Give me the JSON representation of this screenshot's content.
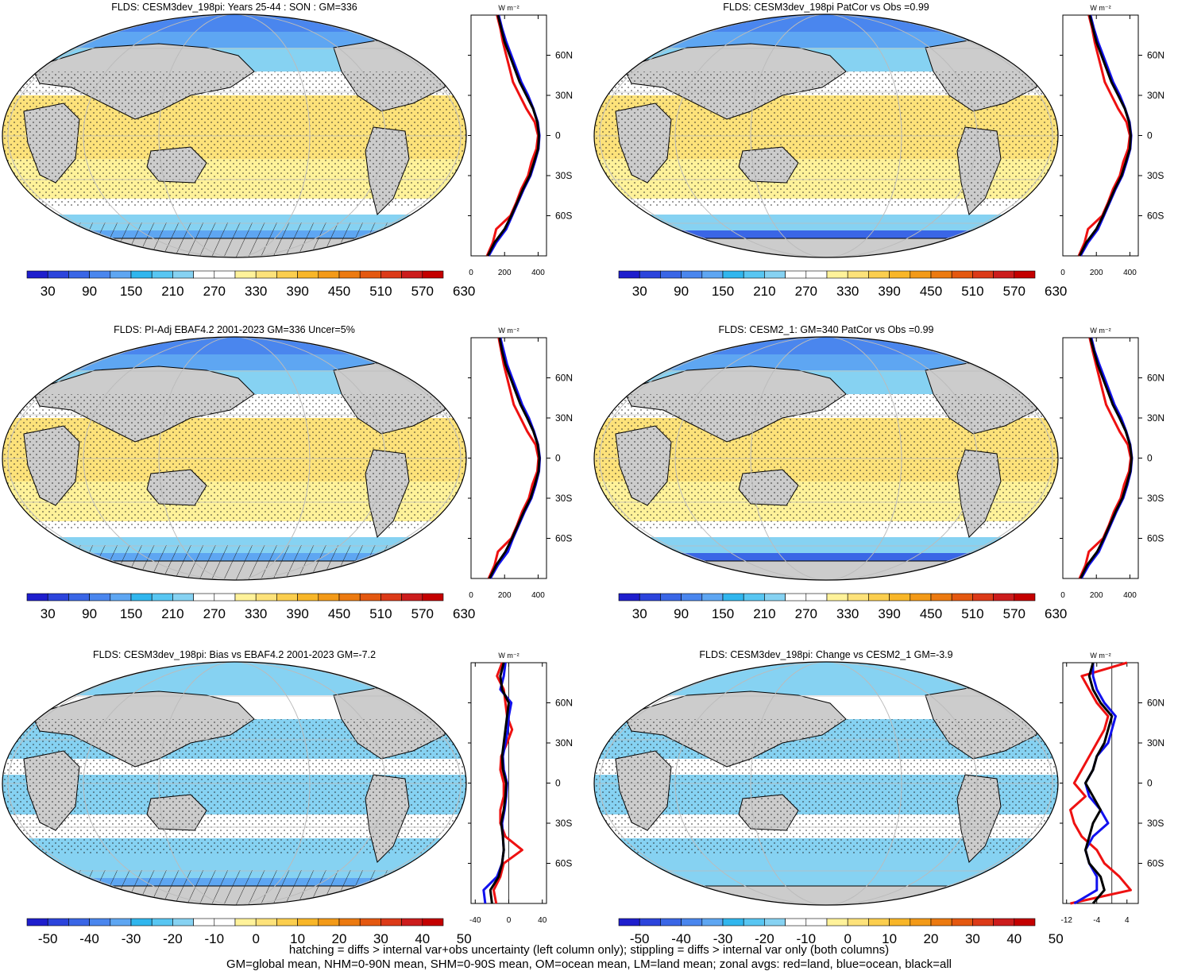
{
  "colors": {
    "land": "#cccccc",
    "abs_palette": [
      "#1e1ecd",
      "#2c44dc",
      "#3a66e6",
      "#4a86ee",
      "#5ea6f2",
      "#30b6ee",
      "#58c6f2",
      "#86d2f2",
      "#ffffff",
      "#ffffff",
      "#fff29a",
      "#fde27a",
      "#fbce4e",
      "#f8b628",
      "#f39a18",
      "#ec7a10",
      "#e45810",
      "#dc3a18",
      "#cc1c1c",
      "#c40000"
    ],
    "diff_palette": [
      "#1e1ecd",
      "#2c44dc",
      "#3a66e6",
      "#4a86ee",
      "#5ea6f2",
      "#30b6ee",
      "#58c6f2",
      "#86d2f2",
      "#ffffff",
      "#ffffff",
      "#fff29a",
      "#fde27a",
      "#fbce4e",
      "#f8b628",
      "#f39a18",
      "#ec7a10",
      "#e45810",
      "#dc3a18",
      "#cc1c1c",
      "#c40000"
    ],
    "curve_land": "#ee1111",
    "curve_ocean": "#1111ee",
    "curve_all": "#000000"
  },
  "zonal_y_ticks": [
    "60N",
    "30N",
    "0",
    "30S",
    "60S"
  ],
  "zonal_units": "W m⁻²",
  "abs_colorbar_labels": [
    "30",
    "90",
    "150",
    "210",
    "270",
    "330",
    "390",
    "450",
    "510",
    "570",
    "630"
  ],
  "diff_colorbar_labels": [
    "-50",
    "-40",
    "-30",
    "-20",
    "-10",
    "0",
    "10",
    "20",
    "30",
    "40",
    "50"
  ],
  "footer": {
    "line1": "hatching = diffs > internal var+obs uncertainty (left column only); stippling = diffs > internal var only (both columns)",
    "line2": "GM=global mean, NHM=0-90N mean, SHM=0-90S mean, OM=ocean mean, LM=land mean; zonal avgs: red=land, blue=ocean, black=all"
  },
  "chart_data": [
    {
      "type": "heatmap",
      "title": "FLDS: CESM3dev_198pi: Years 25-44 : SON : GM=336",
      "variable": "FLDS",
      "global_mean": 336,
      "colorbar": "abs",
      "zonal_mean": {
        "x_ticks": [
          "0",
          "200",
          "400"
        ],
        "xlim": [
          0,
          450
        ],
        "lat": [
          -90,
          -80,
          -70,
          -60,
          -50,
          -40,
          -30,
          -20,
          -10,
          0,
          10,
          20,
          30,
          40,
          50,
          60,
          70,
          80,
          90
        ],
        "all": [
          100,
          140,
          200,
          240,
          275,
          310,
          350,
          375,
          400,
          405,
          395,
          370,
          330,
          290,
          260,
          230,
          200,
          180,
          160
        ],
        "ocean": [
          105,
          150,
          210,
          245,
          280,
          315,
          355,
          380,
          402,
          408,
          398,
          372,
          340,
          300,
          270,
          240,
          210,
          185,
          165
        ],
        "land": [
          95,
          130,
          150,
          235,
          270,
          300,
          340,
          360,
          390,
          400,
          380,
          330,
          290,
          250,
          230,
          210,
          190,
          175,
          155
        ]
      }
    },
    {
      "type": "heatmap",
      "title": "FLDS: CESM3dev_198pi PatCor vs Obs =0.99",
      "variable": "FLDS",
      "pattern_correlation": 0.99,
      "colorbar": "abs",
      "zonal_mean": {
        "x_ticks": [
          "0",
          "200",
          "400"
        ],
        "xlim": [
          0,
          450
        ],
        "lat": [
          -90,
          -80,
          -70,
          -60,
          -50,
          -40,
          -30,
          -20,
          -10,
          0,
          10,
          20,
          30,
          40,
          50,
          60,
          70,
          80,
          90
        ],
        "all": [
          100,
          140,
          200,
          240,
          275,
          310,
          350,
          375,
          400,
          405,
          395,
          370,
          330,
          290,
          260,
          230,
          200,
          180,
          160
        ],
        "ocean": [
          105,
          150,
          210,
          245,
          280,
          315,
          355,
          380,
          402,
          408,
          398,
          372,
          340,
          300,
          270,
          240,
          210,
          185,
          165
        ],
        "land": [
          95,
          130,
          150,
          235,
          270,
          300,
          340,
          360,
          390,
          400,
          380,
          330,
          290,
          250,
          230,
          210,
          190,
          175,
          155
        ]
      }
    },
    {
      "type": "heatmap",
      "title": "FLDS: PI-Adj EBAF4.2 2001-2023 GM=336 Uncer=5%",
      "variable": "FLDS",
      "global_mean": 336,
      "uncertainty": "5%",
      "colorbar": "abs",
      "zonal_mean": {
        "x_ticks": [
          "0",
          "200",
          "400"
        ],
        "xlim": [
          0,
          450
        ],
        "lat": [
          -90,
          -80,
          -70,
          -60,
          -50,
          -40,
          -30,
          -20,
          -10,
          0,
          10,
          20,
          30,
          40,
          50,
          60,
          70,
          80,
          90
        ],
        "all": [
          110,
          150,
          205,
          245,
          280,
          315,
          355,
          380,
          402,
          408,
          398,
          372,
          335,
          295,
          265,
          235,
          205,
          185,
          170
        ],
        "ocean": [
          115,
          160,
          220,
          250,
          285,
          320,
          360,
          385,
          405,
          410,
          400,
          375,
          345,
          305,
          275,
          245,
          215,
          195,
          175
        ],
        "land": [
          105,
          140,
          160,
          240,
          275,
          305,
          345,
          365,
          395,
          402,
          385,
          335,
          295,
          255,
          235,
          215,
          195,
          180,
          165
        ]
      }
    },
    {
      "type": "heatmap",
      "title": "FLDS: CESM2_1: GM=340 PatCor vs Obs =0.99",
      "variable": "FLDS",
      "global_mean": 340,
      "pattern_correlation": 0.99,
      "colorbar": "abs",
      "zonal_mean": {
        "x_ticks": [
          "0",
          "200",
          "400"
        ],
        "xlim": [
          0,
          450
        ],
        "lat": [
          -90,
          -80,
          -70,
          -60,
          -50,
          -40,
          -30,
          -20,
          -10,
          0,
          10,
          20,
          30,
          40,
          50,
          60,
          70,
          80,
          90
        ],
        "all": [
          105,
          145,
          205,
          245,
          280,
          315,
          355,
          380,
          402,
          410,
          400,
          375,
          338,
          298,
          268,
          238,
          208,
          185,
          165
        ],
        "ocean": [
          110,
          155,
          215,
          250,
          285,
          320,
          360,
          385,
          405,
          412,
          402,
          378,
          348,
          308,
          278,
          248,
          218,
          190,
          170
        ],
        "land": [
          100,
          135,
          155,
          240,
          275,
          305,
          345,
          365,
          395,
          405,
          388,
          338,
          298,
          258,
          238,
          218,
          198,
          178,
          160
        ]
      }
    },
    {
      "type": "heatmap",
      "title": "FLDS: CESM3dev_198pi: Bias vs EBAF4.2 2001-2023  GM=-7.2",
      "variable": "FLDS",
      "global_mean": -7.2,
      "colorbar": "diff",
      "zonal_mean": {
        "x_ticks": [
          "-40",
          "0",
          "40"
        ],
        "xlim": [
          -45,
          45
        ],
        "lat": [
          -90,
          -80,
          -70,
          -60,
          -50,
          -40,
          -30,
          -20,
          -10,
          0,
          10,
          20,
          30,
          40,
          50,
          60,
          70,
          80,
          90
        ],
        "all": [
          -20,
          -22,
          -12,
          -8,
          -6,
          -7,
          -9,
          -6,
          -4,
          -3,
          -7,
          -8,
          -6,
          -4,
          -2,
          0,
          -8,
          -10,
          -6
        ],
        "ocean": [
          -28,
          -30,
          -14,
          -8,
          -6,
          -7,
          -8,
          -5,
          -3,
          -2,
          -6,
          -7,
          -4,
          -1,
          0,
          3,
          -10,
          -6,
          -4
        ],
        "land": [
          -15,
          -18,
          -10,
          -6,
          16,
          -4,
          -10,
          -10,
          -6,
          -6,
          -10,
          -9,
          -2,
          4,
          -2,
          -4,
          -6,
          -14,
          -8
        ]
      }
    },
    {
      "type": "heatmap",
      "title": "FLDS: CESM3dev_198pi: Change vs CESM2_1 GM=-3.9",
      "variable": "FLDS",
      "global_mean": -3.9,
      "colorbar": "diff",
      "zonal_mean": {
        "x_ticks": [
          "-12",
          "-4",
          "4"
        ],
        "xlim": [
          -13,
          7
        ],
        "lat": [
          -90,
          -80,
          -70,
          -60,
          -50,
          -40,
          -30,
          -20,
          -10,
          0,
          10,
          20,
          30,
          40,
          50,
          60,
          70,
          80,
          90
        ],
        "all": [
          -5,
          -2,
          -3,
          -6,
          -7,
          -6,
          -5,
          -3,
          -5,
          -7,
          -5,
          -4,
          -2,
          -1,
          0,
          -3,
          -5,
          -6,
          -5
        ],
        "ocean": [
          -10,
          -4,
          -4,
          -6,
          -7,
          -5,
          -1,
          -3,
          -6,
          -7,
          -5,
          -4,
          -1,
          0,
          1,
          -2,
          -4,
          -5,
          -5
        ],
        "land": [
          -11,
          5,
          2,
          -2,
          -4,
          -8,
          -10,
          -11,
          -7,
          -10,
          -8,
          -6,
          -4,
          -2,
          -1,
          -4,
          -6,
          -8,
          4
        ]
      }
    }
  ]
}
